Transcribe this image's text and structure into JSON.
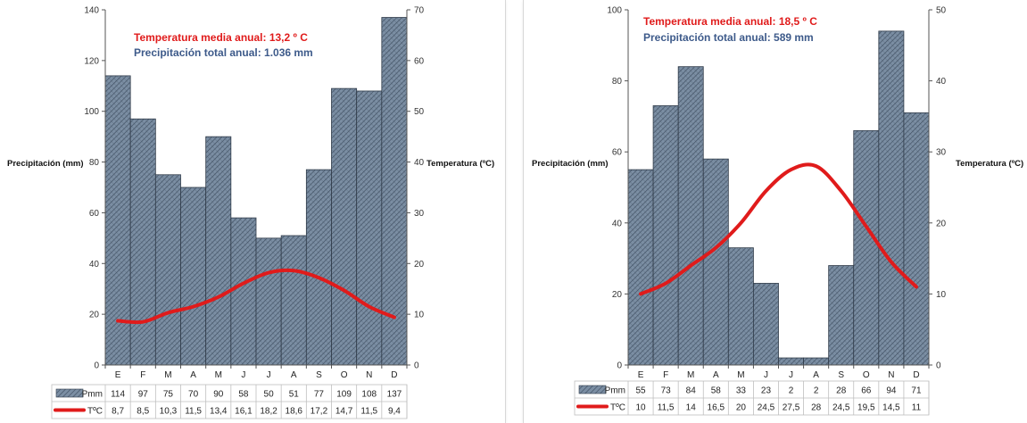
{
  "chart_data": [
    {
      "type": "bar",
      "categories": [
        "E",
        "F",
        "M",
        "A",
        "M",
        "J",
        "J",
        "A",
        "S",
        "O",
        "N",
        "D"
      ],
      "series": [
        {
          "name": "Pmm",
          "type": "bar",
          "axis": "left",
          "values": [
            114,
            97,
            75,
            70,
            90,
            58,
            50,
            51,
            77,
            109,
            108,
            137
          ]
        },
        {
          "name": "TºC",
          "type": "line",
          "axis": "right",
          "values": [
            8.7,
            8.5,
            10.3,
            11.5,
            13.4,
            16.1,
            18.2,
            18.6,
            17.2,
            14.7,
            11.5,
            9.4
          ],
          "labels": [
            "8,7",
            "8,5",
            "10,3",
            "11,5",
            "13,4",
            "16,1",
            "18,2",
            "18,6",
            "17,2",
            "14,7",
            "11,5",
            "9,4"
          ]
        }
      ],
      "ylabel": "Precipitación (mm)",
      "ylabel_right": "Temperatura (ºC)",
      "ylim": [
        0,
        140
      ],
      "yticks": [
        0,
        20,
        40,
        60,
        80,
        100,
        120,
        140
      ],
      "ylim_right": [
        0,
        70
      ],
      "yticks_right": [
        0,
        10,
        20,
        30,
        40,
        50,
        60,
        70
      ],
      "annotations": [
        "Temperatura media anual: 13,2 º C",
        "Precipitación total anual: 1.036 mm"
      ],
      "data_table": true,
      "grid": false
    },
    {
      "type": "bar",
      "categories": [
        "E",
        "F",
        "M",
        "A",
        "M",
        "J",
        "J",
        "A",
        "S",
        "O",
        "N",
        "D"
      ],
      "series": [
        {
          "name": "Pmm",
          "type": "bar",
          "axis": "left",
          "values": [
            55,
            73,
            84,
            58,
            33,
            23,
            2,
            2,
            28,
            66,
            94,
            71
          ]
        },
        {
          "name": "TºC",
          "type": "line",
          "axis": "right",
          "values": [
            10,
            11.5,
            14,
            16.5,
            20,
            24.5,
            27.5,
            28,
            24.5,
            19.5,
            14.5,
            11
          ],
          "labels": [
            "10",
            "11,5",
            "14",
            "16,5",
            "20",
            "24,5",
            "27,5",
            "28",
            "24,5",
            "19,5",
            "14,5",
            "11"
          ]
        }
      ],
      "ylabel": "Precipitación (mm)",
      "ylabel_right": "Temperatura (ºC)",
      "ylim": [
        0,
        100
      ],
      "yticks": [
        0,
        20,
        40,
        60,
        80,
        100
      ],
      "ylim_right": [
        0,
        50
      ],
      "yticks_right": [
        0,
        10,
        20,
        30,
        40,
        50
      ],
      "annotations": [
        "Temperatura media anual: 18,5 º C",
        "Precipitación total anual: 589 mm"
      ],
      "data_table": true,
      "grid": false
    }
  ],
  "colors": {
    "bar_fill": "#7b8ea3",
    "bar_hatch": "#3e4d60",
    "bar_stroke": "#2f3a48",
    "temp_line": "#e01b1b",
    "annotation_temp": "#e01b1b",
    "annotation_precip": "#3d5a8a",
    "axis": "#555555"
  }
}
